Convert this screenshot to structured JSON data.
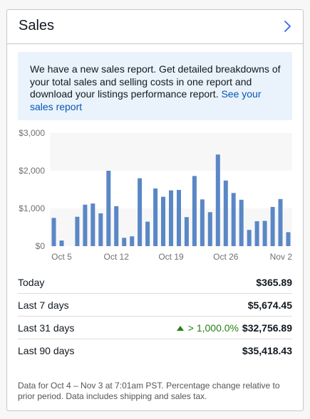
{
  "card": {
    "title": "Sales",
    "open_icon": "chevron-right-icon"
  },
  "notice": {
    "text": "We have a new sales report. Get detailed breakdowns of your total sales and selling costs in one report and download your listings performance report.",
    "link": "See your sales report"
  },
  "chart_data": {
    "type": "bar",
    "title": "",
    "xlabel": "",
    "ylabel": "",
    "ylim": [
      0,
      3000
    ],
    "y_ticks": [
      "$0",
      "$1,000",
      "$2,000",
      "$3,000"
    ],
    "x_ticks": [
      {
        "label": "Oct 5",
        "index": 1
      },
      {
        "label": "Oct 12",
        "index": 8
      },
      {
        "label": "Oct 19",
        "index": 15
      },
      {
        "label": "Oct 26",
        "index": 22
      },
      {
        "label": "Nov 2",
        "index": 29
      }
    ],
    "categories": [
      "Oct 4",
      "Oct 5",
      "Oct 6",
      "Oct 7",
      "Oct 8",
      "Oct 9",
      "Oct 10",
      "Oct 11",
      "Oct 12",
      "Oct 13",
      "Oct 14",
      "Oct 15",
      "Oct 16",
      "Oct 17",
      "Oct 18",
      "Oct 19",
      "Oct 20",
      "Oct 21",
      "Oct 22",
      "Oct 23",
      "Oct 24",
      "Oct 25",
      "Oct 26",
      "Oct 27",
      "Oct 28",
      "Oct 29",
      "Oct 30",
      "Oct 31",
      "Nov 1",
      "Nov 2",
      "Nov 3"
    ],
    "values": [
      750,
      150,
      0,
      780,
      1100,
      1130,
      870,
      2000,
      1060,
      220,
      260,
      1800,
      650,
      1530,
      1310,
      1480,
      1490,
      770,
      1860,
      1240,
      900,
      2430,
      1740,
      1410,
      1230,
      430,
      660,
      670,
      1040,
      1250,
      370
    ],
    "bar_color": "#5a87c6",
    "band_colors": [
      "#f7f7f7",
      "#ffffff"
    ],
    "grid": true
  },
  "stats": [
    {
      "label": "Today",
      "value": "$365.89",
      "change": ""
    },
    {
      "label": "Last 7 days",
      "value": "$5,674.45",
      "change": ""
    },
    {
      "label": "Last 31 days",
      "value": "$32,756.89",
      "change": "> 1,000.0%"
    },
    {
      "label": "Last 90 days",
      "value": "$35,418.43",
      "change": ""
    }
  ],
  "footnote": "Data for Oct 4 – Nov 3 at 7:01am PST. Percentage change relative to prior period. Data includes shipping and sales tax.",
  "colors": {
    "accent": "#0654ba",
    "positive": "#268012"
  }
}
